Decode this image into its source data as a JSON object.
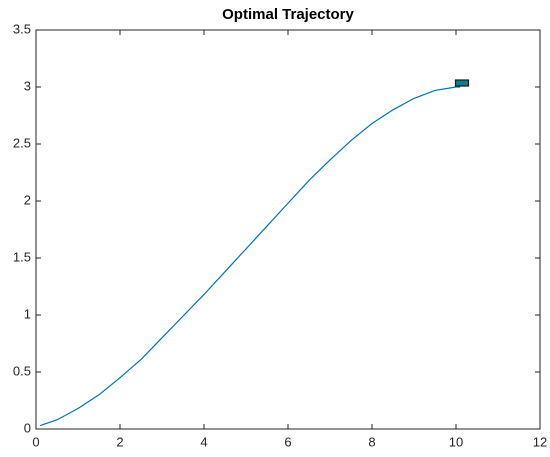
{
  "chart_data": {
    "type": "line",
    "title": "Optimal Trajectory",
    "x": [
      0.1,
      0.5,
      1,
      1.5,
      2,
      2.5,
      3,
      3.5,
      4,
      4.5,
      5,
      5.5,
      6,
      6.5,
      7,
      7.5,
      8,
      8.5,
      9,
      9.5,
      10,
      10.1
    ],
    "series": [
      {
        "color": "#0072bd",
        "values": [
          0.03,
          0.08,
          0.18,
          0.3,
          0.45,
          0.61,
          0.8,
          0.99,
          1.18,
          1.38,
          1.58,
          1.78,
          1.98,
          2.18,
          2.36,
          2.53,
          2.68,
          2.8,
          2.9,
          2.97,
          3.0,
          3.0
        ]
      }
    ],
    "xlim": [
      0,
      12
    ],
    "ylim": [
      0,
      3.5
    ],
    "xticks": [
      0,
      2,
      4,
      6,
      8,
      10,
      12
    ],
    "yticks": [
      0,
      0.5,
      1,
      1.5,
      2,
      2.5,
      3,
      3.5
    ],
    "grid": false
  }
}
